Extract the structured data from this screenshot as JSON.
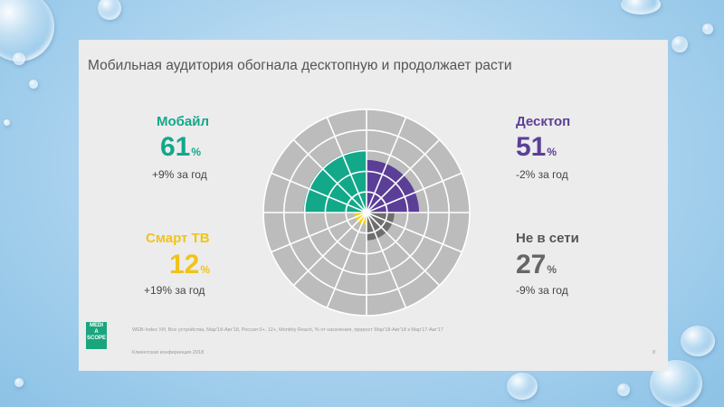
{
  "slide": {
    "title": "Мобильная аудитория обогнала десктопную и продолжает расти",
    "source_note": "WEB-Index УИ, Все устройства, Мар'18-Авг'18, Россия 0+, 12+, Monthly Reach, % от населения, прирост Мар'18-Авг'18 к Мар'17-Авг'17",
    "footer": "Клиентская конференция 2018",
    "page_number": "8",
    "logo_text": "MEDIA SCOPE"
  },
  "segments": {
    "mobile": {
      "label": "Мобайл",
      "value": "61",
      "unit": "%",
      "change": "+9% за год",
      "color": "#13a88a"
    },
    "desktop": {
      "label": "Десктоп",
      "value": "51",
      "unit": "%",
      "change": "-2% за год",
      "color": "#5b3f97"
    },
    "smarttv": {
      "label": "Смарт ТВ",
      "value": "12",
      "unit": "%",
      "change": "+19% за год",
      "color": "#f4d21a"
    },
    "offline": {
      "label": "Не в сети",
      "value": "27",
      "unit": "%",
      "change": "-9% за год",
      "color": "#6e6e6e"
    }
  },
  "chart_data": {
    "type": "polar-area",
    "categories": [
      "Мобайл",
      "Десктоп",
      "Смарт ТВ",
      "Не в сети"
    ],
    "values": [
      61,
      51,
      12,
      27
    ],
    "quadrants": [
      "top-left",
      "top-right",
      "bottom-left",
      "bottom-right"
    ],
    "rlim": [
      0,
      100
    ],
    "grid": true,
    "colors": {
      "background": "#bcbcbc",
      "grid_line": "#ffffff"
    }
  }
}
